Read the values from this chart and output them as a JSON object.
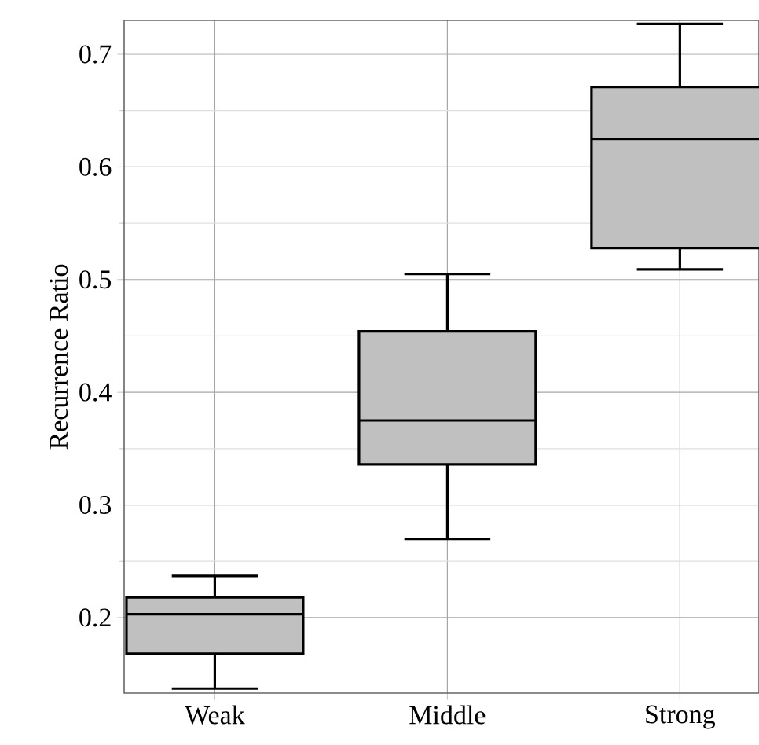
{
  "chart_data": {
    "type": "box",
    "ylabel": "Recurrence Ratio",
    "categories": [
      "Weak",
      "Middle",
      "Strong"
    ],
    "color": "#c0c0c0",
    "boxes": [
      {
        "low": 0.137,
        "q1": 0.168,
        "median": 0.203,
        "q3": 0.218,
        "high": 0.237
      },
      {
        "low": 0.27,
        "q1": 0.336,
        "median": 0.375,
        "q3": 0.454,
        "high": 0.505
      },
      {
        "low": 0.509,
        "q1": 0.528,
        "median": 0.625,
        "q3": 0.671,
        "high": 0.727
      }
    ],
    "ylim": [
      0.133,
      0.73
    ],
    "yticks": [
      0.2,
      0.3,
      0.4,
      0.5,
      0.6,
      0.7
    ],
    "grid": true
  }
}
